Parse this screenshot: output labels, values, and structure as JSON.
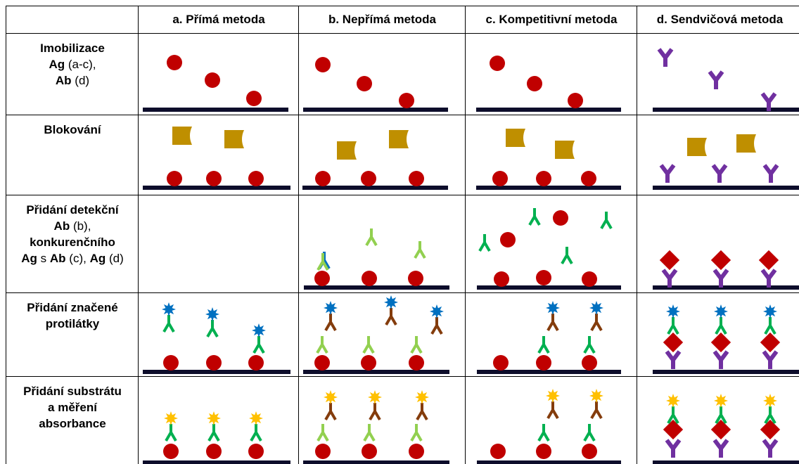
{
  "header": {
    "columns": [
      "a. Přímá metoda",
      "b. Nepřímá metoda",
      "c. Kompetitivní metoda",
      "d. Sendvičová metoda"
    ]
  },
  "rows": [
    {
      "lines": [
        [
          {
            "text": "Imobilizace",
            "bold": true
          }
        ],
        [
          {
            "text": "Ag",
            "bold": true
          },
          {
            "text": " (a-c),",
            "bold": false
          }
        ],
        [
          {
            "text": "Ab",
            "bold": true
          },
          {
            "text": " (d)",
            "bold": false
          }
        ]
      ]
    },
    {
      "lines": [
        [
          {
            "text": "Blokování",
            "bold": true
          }
        ]
      ]
    },
    {
      "lines": [
        [
          {
            "text": "Přidání detekční",
            "bold": true
          }
        ],
        [
          {
            "text": "Ab",
            "bold": true
          },
          {
            "text": " (b),",
            "bold": false
          }
        ],
        [
          {
            "text": "konkurenčního",
            "bold": true
          }
        ],
        [
          {
            "text": "Ag",
            "bold": true
          },
          {
            "text": " s ",
            "bold": false
          },
          {
            "text": "Ab",
            "bold": true
          },
          {
            "text": " (c), ",
            "bold": false
          },
          {
            "text": "Ag",
            "bold": true
          },
          {
            "text": " (d)",
            "bold": false
          }
        ]
      ]
    },
    {
      "lines": [
        [
          {
            "text": "Přidání značené",
            "bold": true
          }
        ],
        [
          {
            "text": "protilátky",
            "bold": true
          }
        ]
      ]
    },
    {
      "lines": [
        [
          {
            "text": "Přidání substrátu",
            "bold": true
          }
        ],
        [
          {
            "text": "a měření",
            "bold": true
          }
        ],
        [
          {
            "text": "absorbance",
            "bold": true
          }
        ]
      ]
    }
  ]
}
